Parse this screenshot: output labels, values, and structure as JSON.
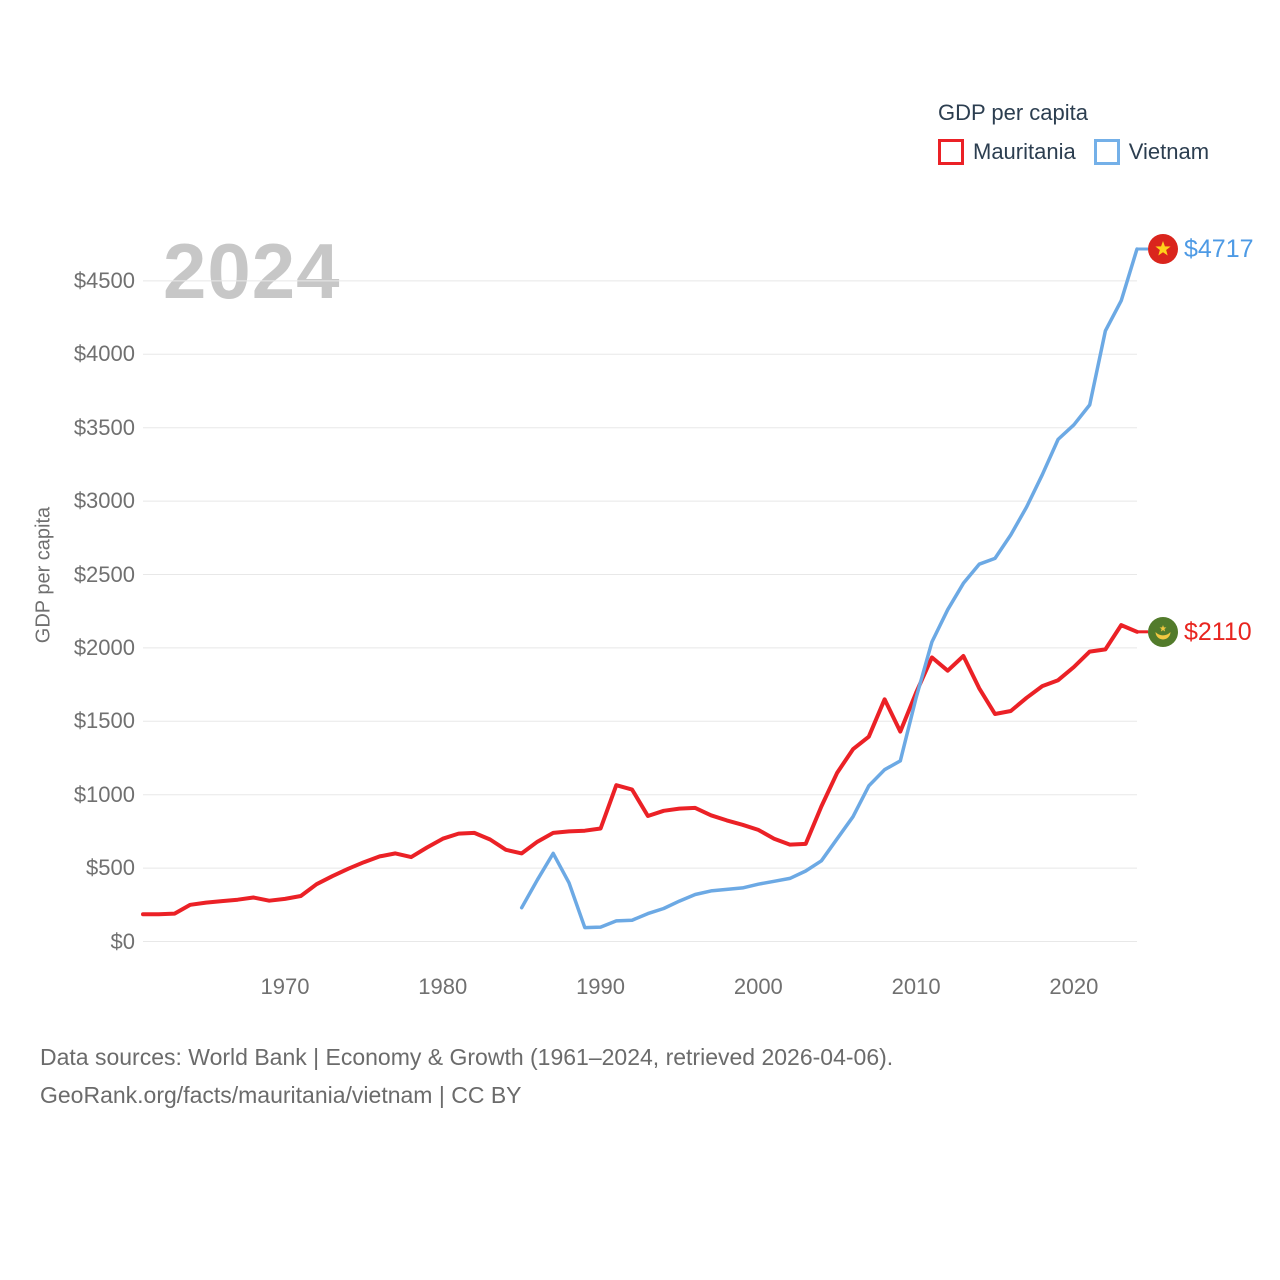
{
  "legend": {
    "title": "GDP per capita",
    "items": [
      {
        "label": "Mauritania",
        "color": "#EB2126"
      },
      {
        "label": "Vietnam",
        "color": "#74B0E8"
      }
    ]
  },
  "watermark": "2024",
  "end_labels": {
    "vietnam": {
      "label": "$4717",
      "color": "#4D9AE5"
    },
    "mauritania": {
      "label": "$2110",
      "color": "#E8251F"
    }
  },
  "source": {
    "line1": "Data sources: World Bank | Economy & Growth (1961–2024, retrieved 2026-04-06).",
    "line2": "GeoRank.org/facts/mauritania/vietnam | CC BY"
  },
  "chart_data": {
    "type": "line",
    "title": "GDP per capita",
    "ylabel": "GDP per capita",
    "xlabel": "",
    "xlim": [
      1961,
      2024
    ],
    "ylim": [
      0,
      4800
    ],
    "grid": true,
    "legend_position": "top-right",
    "x_axis": {
      "ticks": [
        {
          "value": 1970,
          "label": "1970"
        },
        {
          "value": 1980,
          "label": "1980"
        },
        {
          "value": 1990,
          "label": "1990"
        },
        {
          "value": 2000,
          "label": "2000"
        },
        {
          "value": 2010,
          "label": "2010"
        },
        {
          "value": 2020,
          "label": "2020"
        }
      ]
    },
    "y_axis": {
      "ticks": [
        {
          "value": 0,
          "label": "$0"
        },
        {
          "value": 500,
          "label": "$500"
        },
        {
          "value": 1000,
          "label": "$1000"
        },
        {
          "value": 1500,
          "label": "$1500"
        },
        {
          "value": 2000,
          "label": "$2000"
        },
        {
          "value": 2500,
          "label": "$2500"
        },
        {
          "value": 3000,
          "label": "$3000"
        },
        {
          "value": 3500,
          "label": "$3500"
        },
        {
          "value": 4000,
          "label": "$4000"
        },
        {
          "value": 4500,
          "label": "$4500"
        }
      ]
    },
    "x": [
      1961,
      1962,
      1963,
      1964,
      1965,
      1966,
      1967,
      1968,
      1969,
      1970,
      1971,
      1972,
      1973,
      1974,
      1975,
      1976,
      1977,
      1978,
      1979,
      1980,
      1981,
      1982,
      1983,
      1984,
      1985,
      1986,
      1987,
      1988,
      1989,
      1990,
      1991,
      1992,
      1993,
      1994,
      1995,
      1996,
      1997,
      1998,
      1999,
      2000,
      2001,
      2002,
      2003,
      2004,
      2005,
      2006,
      2007,
      2008,
      2009,
      2010,
      2011,
      2012,
      2013,
      2014,
      2015,
      2016,
      2017,
      2018,
      2019,
      2020,
      2021,
      2022,
      2023,
      2024
    ],
    "series": [
      {
        "name": "Mauritania",
        "color": "#EB2126",
        "end_value": 2110,
        "values": [
          185,
          185,
          190,
          250,
          265,
          275,
          285,
          300,
          278,
          290,
          310,
          390,
          445,
          495,
          540,
          580,
          600,
          575,
          640,
          700,
          735,
          740,
          695,
          625,
          600,
          680,
          740,
          750,
          755,
          770,
          1065,
          1035,
          855,
          890,
          905,
          910,
          860,
          825,
          795,
          760,
          700,
          660,
          665,
          920,
          1150,
          1310,
          1395,
          1650,
          1430,
          1695,
          1935,
          1845,
          1945,
          1725,
          1550,
          1570,
          1660,
          1740,
          1780,
          1870,
          1975,
          1990,
          2155,
          2110
        ]
      },
      {
        "name": "Vietnam",
        "color": "#6CA9E4",
        "end_value": 4717,
        "values": [
          null,
          null,
          null,
          null,
          null,
          null,
          null,
          null,
          null,
          null,
          null,
          null,
          null,
          null,
          null,
          null,
          null,
          null,
          null,
          null,
          null,
          null,
          null,
          null,
          230,
          420,
          600,
          400,
          95,
          98,
          140,
          145,
          190,
          225,
          275,
          320,
          345,
          355,
          365,
          390,
          410,
          430,
          480,
          550,
          700,
          850,
          1060,
          1170,
          1230,
          1660,
          2040,
          2260,
          2440,
          2570,
          2610,
          2770,
          2960,
          3180,
          3420,
          3520,
          3655,
          4160,
          4365,
          4717
        ]
      }
    ]
  }
}
